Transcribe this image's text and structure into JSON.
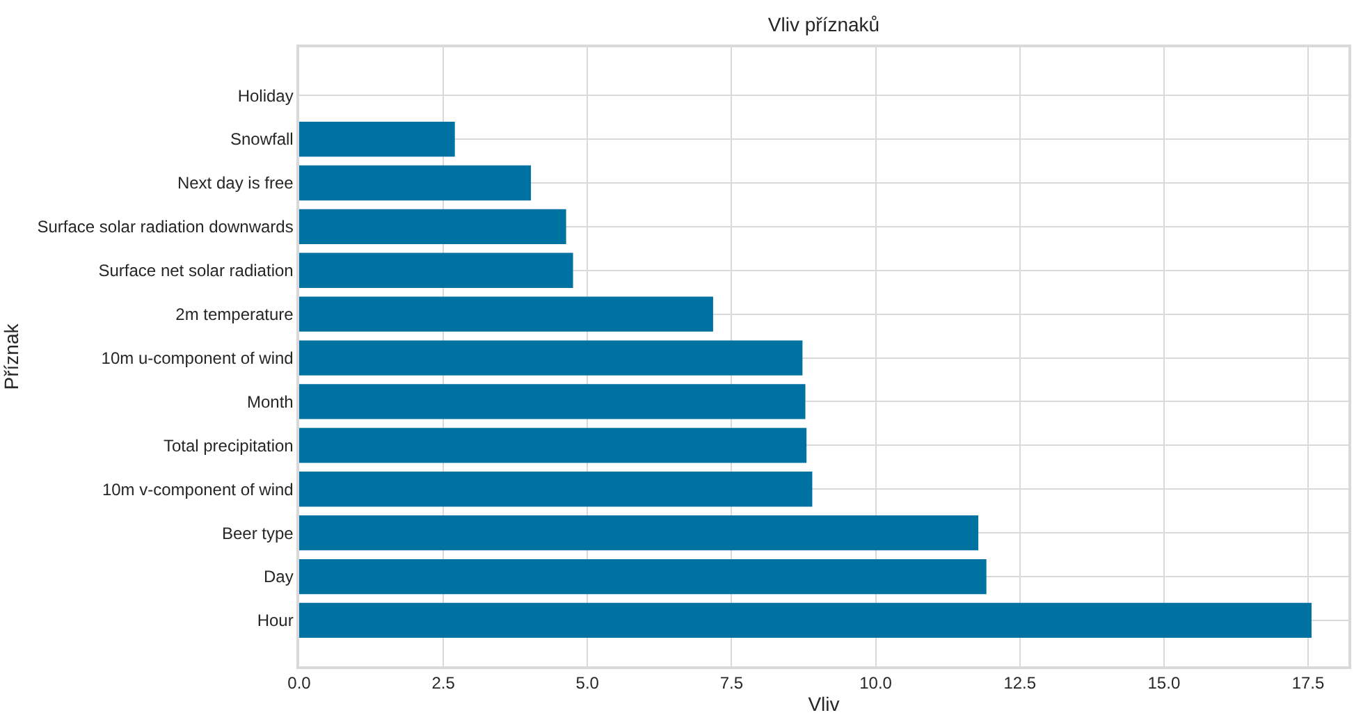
{
  "chart_data": {
    "type": "bar",
    "orientation": "horizontal",
    "title": "Vliv příznaků",
    "xlabel": "Vliv",
    "ylabel": "Příznak",
    "categories": [
      "Holiday",
      "Snowfall",
      "Next day is free",
      "Surface solar radiation downwards",
      "Surface net solar radiation",
      "2m temperature",
      "10m u-component of wind",
      "Month",
      "Total precipitation",
      "10m v-component of wind",
      "Beer type",
      "Day",
      "Hour"
    ],
    "values": [
      0,
      2.7,
      4.02,
      4.63,
      4.75,
      7.18,
      8.73,
      8.78,
      8.8,
      8.9,
      11.78,
      11.92,
      17.56
    ],
    "color": "#0072a2",
    "xlim": [
      0,
      18.2
    ],
    "xticks": [
      {
        "value": 0,
        "label": "0.0"
      },
      2.5,
      {
        "value": 5,
        "label": "5.0"
      },
      7.5,
      {
        "value": 10,
        "label": "10.0"
      },
      12.5,
      {
        "value": 15,
        "label": "15.0"
      },
      17.5
    ],
    "grid": true
  }
}
